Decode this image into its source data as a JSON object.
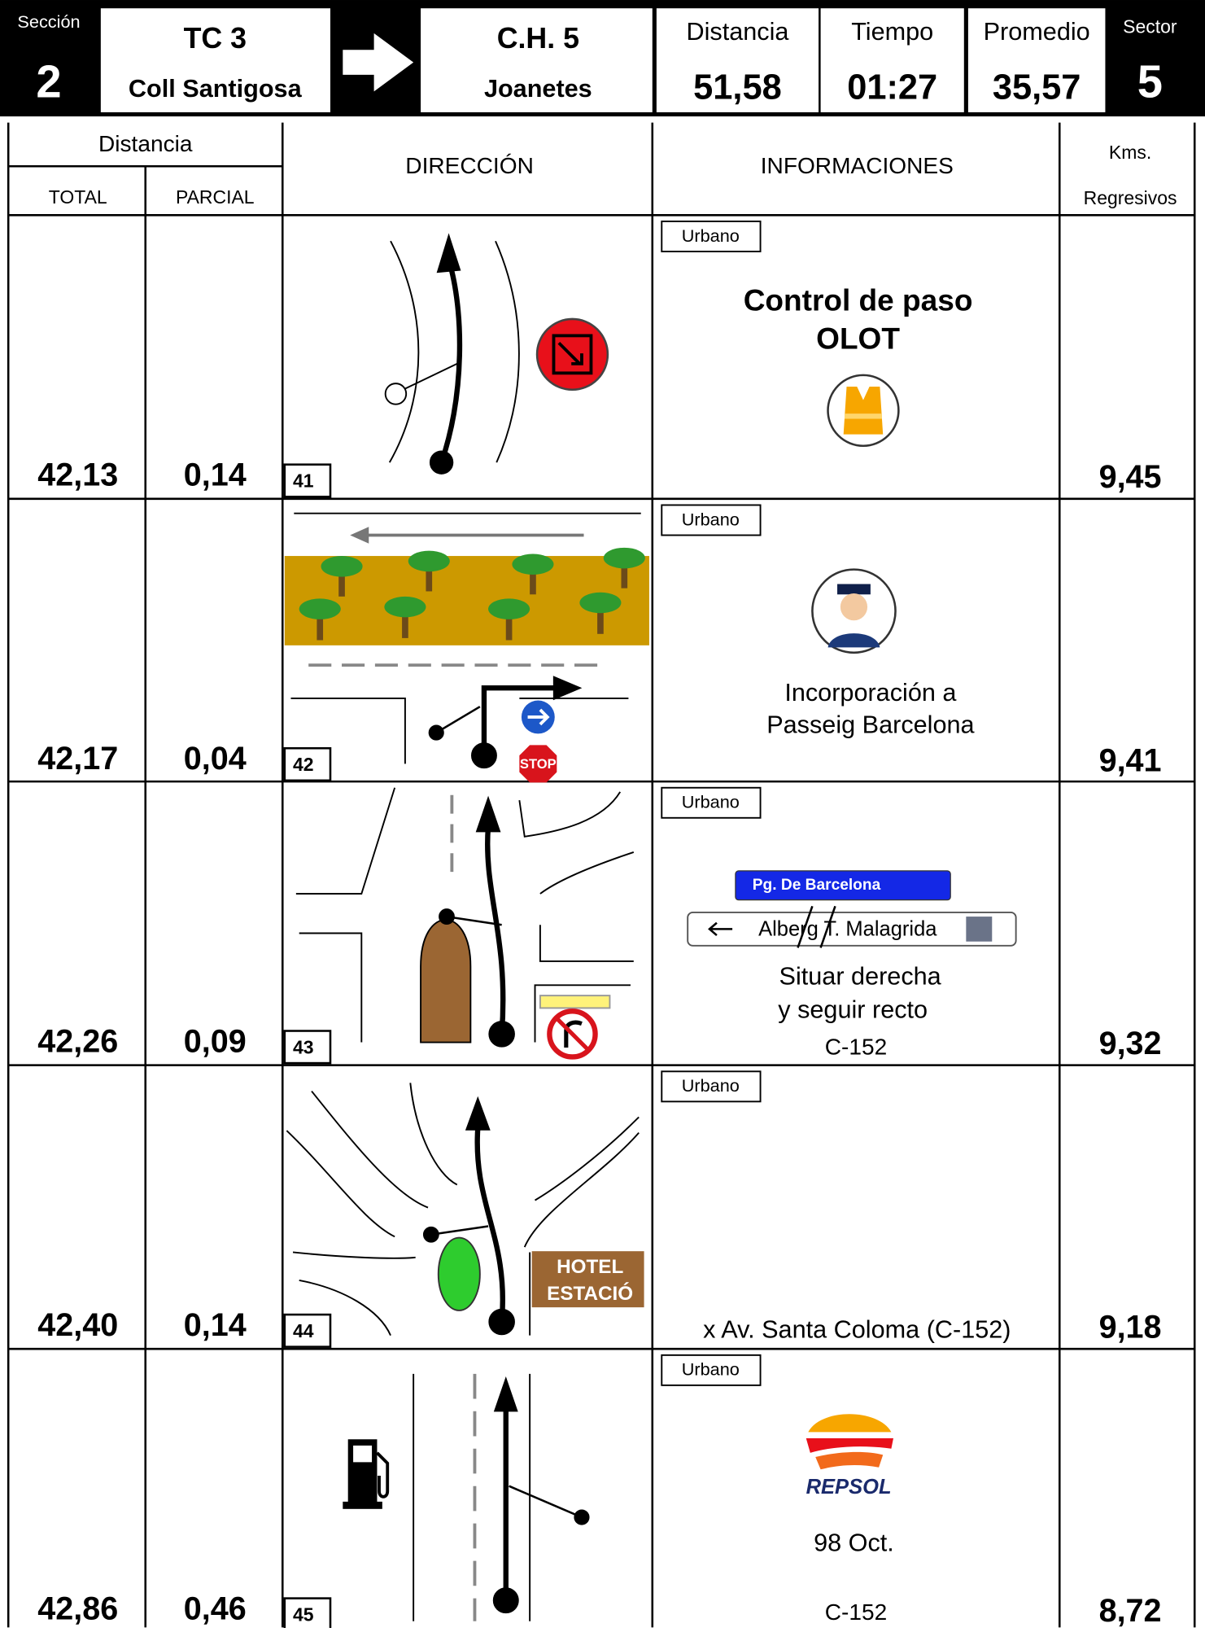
{
  "header": {
    "seccion_label": "Sección",
    "seccion": "2",
    "from_code": "TC 3",
    "from_name": "Coll Santigosa",
    "to_code": "C.H. 5",
    "to_name": "Joanetes",
    "distancia_label": "Distancia",
    "distancia": "51,58",
    "tiempo_label": "Tiempo",
    "tiempo": "01:27",
    "promedio_label": "Promedio",
    "promedio": "35,57",
    "sector_label": "Sector",
    "sector": "5"
  },
  "columns": {
    "distancia": "Distancia",
    "total": "TOTAL",
    "parcial": "PARCIAL",
    "direccion": "DIRECCIÓN",
    "informaciones": "INFORMACIONES",
    "kms": "Kms.",
    "regresivos": "Regresivos"
  },
  "rows": [
    {
      "number": "41",
      "total": "42,13",
      "parcial": "0,14",
      "kms": "9,45",
      "tag": "Urbano",
      "info": [
        "Control de paso",
        "OLOT"
      ]
    },
    {
      "number": "42",
      "total": "42,17",
      "parcial": "0,04",
      "kms": "9,41",
      "tag": "Urbano",
      "info": [
        "Incorporación a",
        "Passeig Barcelona"
      ],
      "sign": "STOP"
    },
    {
      "number": "43",
      "total": "42,26",
      "parcial": "0,09",
      "kms": "9,32",
      "tag": "Urbano",
      "street_sign": "Pg. De Barcelona",
      "direction_sign": "Alberg T. Malagrida",
      "info": [
        "Situar derecha",
        "y seguir recto",
        "C-152"
      ]
    },
    {
      "number": "44",
      "total": "42,40",
      "parcial": "0,14",
      "kms": "9,18",
      "tag": "Urbano",
      "info": [
        "x Av. Santa Coloma (C-152)"
      ],
      "sign": [
        "HOTEL",
        "ESTACIÓ"
      ]
    },
    {
      "number": "45",
      "total": "42,86",
      "parcial": "0,46",
      "kms": "8,72",
      "tag": "Urbano",
      "logo": "REPSOL",
      "info": [
        "98 Oct.",
        "C-152"
      ]
    }
  ]
}
